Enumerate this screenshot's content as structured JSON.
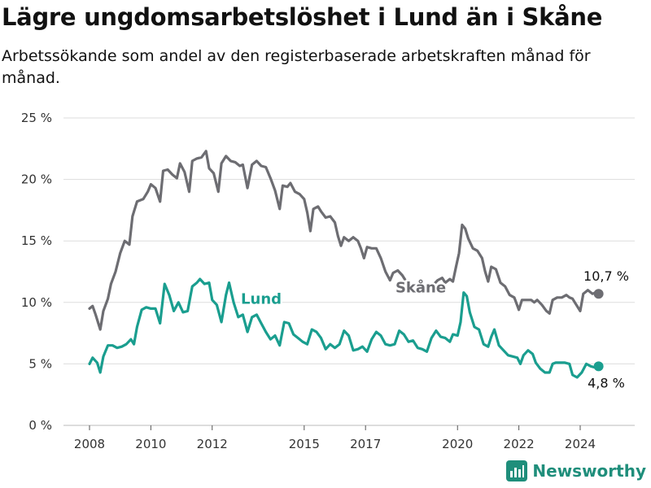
{
  "title": "Lägre ungdomsarbetslöshet i Lund än i Skåne",
  "subtitle": "Arbetssökande som andel av den registerbaserade arbetskraften månad för månad.",
  "brand": "Newsworthy",
  "colors": {
    "skane": "#6d6d72",
    "lund": "#1a9e8f",
    "grid": "#dddddd"
  },
  "chart_data": {
    "type": "line",
    "ylim": [
      0,
      25
    ],
    "xlim": [
      2007.5,
      2025.4
    ],
    "yticks": [
      {
        "value": 0,
        "label": "0 %"
      },
      {
        "value": 5,
        "label": "5 %"
      },
      {
        "value": 10,
        "label": "10 %"
      },
      {
        "value": 15,
        "label": "15 %"
      },
      {
        "value": 20,
        "label": "20 %"
      },
      {
        "value": 25,
        "label": "25 %"
      }
    ],
    "xticks": [
      {
        "value": 2008,
        "label": "2008"
      },
      {
        "value": 2010,
        "label": "2010"
      },
      {
        "value": 2012,
        "label": "2012"
      },
      {
        "value": 2015,
        "label": "2015"
      },
      {
        "value": 2017,
        "label": "2017"
      },
      {
        "value": 2020,
        "label": "2020"
      },
      {
        "value": 2022,
        "label": "2022"
      },
      {
        "value": 2024,
        "label": "2024"
      }
    ],
    "series": [
      {
        "name": "Skåne",
        "color": "#6d6d72",
        "end_label": "10,7 %",
        "points": [
          [
            2008.0,
            9.5
          ],
          [
            2008.1,
            9.7
          ],
          [
            2008.2,
            9.0
          ],
          [
            2008.35,
            7.8
          ],
          [
            2008.45,
            9.3
          ],
          [
            2008.6,
            10.3
          ],
          [
            2008.7,
            11.5
          ],
          [
            2008.85,
            12.5
          ],
          [
            2009.0,
            14.0
          ],
          [
            2009.15,
            15.0
          ],
          [
            2009.3,
            14.7
          ],
          [
            2009.4,
            17.0
          ],
          [
            2009.55,
            18.2
          ],
          [
            2009.75,
            18.4
          ],
          [
            2009.9,
            19.0
          ],
          [
            2010.0,
            19.6
          ],
          [
            2010.15,
            19.3
          ],
          [
            2010.3,
            18.2
          ],
          [
            2010.4,
            20.7
          ],
          [
            2010.55,
            20.8
          ],
          [
            2010.7,
            20.4
          ],
          [
            2010.85,
            20.1
          ],
          [
            2010.95,
            21.3
          ],
          [
            2011.1,
            20.6
          ],
          [
            2011.25,
            19.0
          ],
          [
            2011.35,
            21.5
          ],
          [
            2011.5,
            21.7
          ],
          [
            2011.65,
            21.8
          ],
          [
            2011.8,
            22.3
          ],
          [
            2011.9,
            20.9
          ],
          [
            2012.05,
            20.5
          ],
          [
            2012.2,
            19.0
          ],
          [
            2012.3,
            21.3
          ],
          [
            2012.45,
            21.9
          ],
          [
            2012.6,
            21.5
          ],
          [
            2012.75,
            21.4
          ],
          [
            2012.9,
            21.1
          ],
          [
            2013.0,
            21.2
          ],
          [
            2013.15,
            19.3
          ],
          [
            2013.3,
            21.2
          ],
          [
            2013.45,
            21.5
          ],
          [
            2013.6,
            21.1
          ],
          [
            2013.75,
            21.0
          ],
          [
            2013.9,
            20.1
          ],
          [
            2014.05,
            19.1
          ],
          [
            2014.2,
            17.6
          ],
          [
            2014.3,
            19.5
          ],
          [
            2014.45,
            19.4
          ],
          [
            2014.55,
            19.7
          ],
          [
            2014.7,
            19.0
          ],
          [
            2014.85,
            18.8
          ],
          [
            2015.0,
            18.4
          ],
          [
            2015.1,
            17.3
          ],
          [
            2015.2,
            15.8
          ],
          [
            2015.3,
            17.6
          ],
          [
            2015.45,
            17.8
          ],
          [
            2015.55,
            17.4
          ],
          [
            2015.7,
            16.9
          ],
          [
            2015.85,
            17.0
          ],
          [
            2016.0,
            16.5
          ],
          [
            2016.1,
            15.4
          ],
          [
            2016.2,
            14.6
          ],
          [
            2016.3,
            15.3
          ],
          [
            2016.45,
            15.0
          ],
          [
            2016.6,
            15.3
          ],
          [
            2016.75,
            15.0
          ],
          [
            2016.85,
            14.4
          ],
          [
            2016.95,
            13.6
          ],
          [
            2017.05,
            14.5
          ],
          [
            2017.2,
            14.4
          ],
          [
            2017.35,
            14.4
          ],
          [
            2017.5,
            13.6
          ],
          [
            2017.65,
            12.5
          ],
          [
            2017.8,
            11.8
          ],
          [
            2017.9,
            12.4
          ],
          [
            2018.05,
            12.6
          ],
          [
            2018.2,
            12.2
          ],
          [
            2018.35,
            11.6
          ],
          [
            2018.45,
            11.4
          ],
          null,
          [
            2019.2,
            11.4
          ],
          [
            2019.35,
            11.8
          ],
          [
            2019.5,
            12.0
          ],
          [
            2019.6,
            11.6
          ],
          [
            2019.75,
            11.9
          ],
          [
            2019.85,
            11.7
          ],
          [
            2019.95,
            12.9
          ],
          [
            2020.05,
            14.0
          ],
          [
            2020.15,
            16.3
          ],
          [
            2020.25,
            16.0
          ],
          [
            2020.35,
            15.2
          ],
          [
            2020.5,
            14.4
          ],
          [
            2020.65,
            14.2
          ],
          [
            2020.8,
            13.6
          ],
          [
            2020.9,
            12.5
          ],
          [
            2021.0,
            11.7
          ],
          [
            2021.1,
            12.9
          ],
          [
            2021.25,
            12.7
          ],
          [
            2021.4,
            11.6
          ],
          [
            2021.55,
            11.3
          ],
          [
            2021.7,
            10.6
          ],
          [
            2021.85,
            10.4
          ],
          [
            2022.0,
            9.4
          ],
          [
            2022.1,
            10.2
          ],
          [
            2022.25,
            10.2
          ],
          [
            2022.4,
            10.2
          ],
          [
            2022.5,
            10.0
          ],
          [
            2022.6,
            10.2
          ],
          [
            2022.75,
            9.8
          ],
          [
            2022.9,
            9.3
          ],
          [
            2023.0,
            9.1
          ],
          [
            2023.1,
            10.2
          ],
          [
            2023.25,
            10.4
          ],
          [
            2023.4,
            10.4
          ],
          [
            2023.55,
            10.6
          ],
          [
            2023.65,
            10.4
          ],
          [
            2023.75,
            10.3
          ],
          [
            2023.85,
            9.9
          ],
          [
            2024.0,
            9.3
          ],
          [
            2024.1,
            10.7
          ],
          [
            2024.25,
            11.0
          ],
          [
            2024.4,
            10.7
          ],
          [
            2024.5,
            10.8
          ],
          [
            2024.6,
            10.7
          ]
        ]
      },
      {
        "name": "Lund",
        "color": "#1a9e8f",
        "end_label": "4,8 %",
        "points": [
          [
            2008.0,
            5.0
          ],
          [
            2008.1,
            5.5
          ],
          [
            2008.25,
            5.1
          ],
          [
            2008.35,
            4.3
          ],
          [
            2008.45,
            5.6
          ],
          [
            2008.6,
            6.5
          ],
          [
            2008.75,
            6.5
          ],
          [
            2008.9,
            6.3
          ],
          [
            2009.05,
            6.4
          ],
          [
            2009.2,
            6.6
          ],
          [
            2009.35,
            7.0
          ],
          [
            2009.45,
            6.6
          ],
          [
            2009.55,
            8.0
          ],
          [
            2009.7,
            9.4
          ],
          [
            2009.85,
            9.6
          ],
          [
            2010.0,
            9.5
          ],
          [
            2010.15,
            9.5
          ],
          [
            2010.3,
            8.3
          ],
          [
            2010.45,
            11.5
          ],
          [
            2010.6,
            10.6
          ],
          [
            2010.75,
            9.3
          ],
          [
            2010.9,
            10.0
          ],
          [
            2011.05,
            9.2
          ],
          [
            2011.2,
            9.3
          ],
          [
            2011.35,
            11.3
          ],
          [
            2011.5,
            11.6
          ],
          [
            2011.6,
            11.9
          ],
          [
            2011.75,
            11.5
          ],
          [
            2011.9,
            11.6
          ],
          [
            2012.0,
            10.2
          ],
          [
            2012.15,
            9.8
          ],
          [
            2012.3,
            8.4
          ],
          [
            2012.45,
            10.6
          ],
          [
            2012.55,
            11.6
          ],
          [
            2012.7,
            10.0
          ],
          [
            2012.85,
            8.8
          ],
          [
            2013.0,
            9.0
          ],
          [
            2013.15,
            7.6
          ],
          [
            2013.3,
            8.8
          ],
          [
            2013.45,
            9.0
          ],
          [
            2013.6,
            8.3
          ],
          [
            2013.75,
            7.6
          ],
          [
            2013.9,
            7.0
          ],
          [
            2014.05,
            7.3
          ],
          [
            2014.2,
            6.5
          ],
          [
            2014.35,
            8.4
          ],
          [
            2014.5,
            8.3
          ],
          [
            2014.65,
            7.4
          ],
          [
            2014.8,
            7.1
          ],
          [
            2014.95,
            6.8
          ],
          [
            2015.1,
            6.6
          ],
          [
            2015.25,
            7.8
          ],
          [
            2015.4,
            7.6
          ],
          [
            2015.55,
            7.1
          ],
          [
            2015.7,
            6.2
          ],
          [
            2015.85,
            6.6
          ],
          [
            2016.0,
            6.3
          ],
          [
            2016.15,
            6.6
          ],
          [
            2016.3,
            7.7
          ],
          [
            2016.45,
            7.3
          ],
          [
            2016.6,
            6.1
          ],
          [
            2016.75,
            6.2
          ],
          [
            2016.9,
            6.4
          ],
          [
            2017.05,
            6.0
          ],
          [
            2017.2,
            7.0
          ],
          [
            2017.35,
            7.6
          ],
          [
            2017.5,
            7.3
          ],
          [
            2017.65,
            6.6
          ],
          [
            2017.8,
            6.5
          ],
          [
            2017.95,
            6.6
          ],
          [
            2018.1,
            7.7
          ],
          [
            2018.25,
            7.4
          ],
          [
            2018.4,
            6.8
          ],
          [
            2018.55,
            6.9
          ],
          [
            2018.7,
            6.3
          ],
          [
            2018.85,
            6.2
          ],
          [
            2019.0,
            6.0
          ],
          [
            2019.15,
            7.1
          ],
          [
            2019.3,
            7.7
          ],
          [
            2019.45,
            7.2
          ],
          [
            2019.6,
            7.1
          ],
          [
            2019.75,
            6.8
          ],
          [
            2019.85,
            7.4
          ],
          [
            2020.0,
            7.3
          ],
          [
            2020.1,
            8.4
          ],
          [
            2020.2,
            10.8
          ],
          [
            2020.3,
            10.5
          ],
          [
            2020.4,
            9.2
          ],
          [
            2020.55,
            8.0
          ],
          [
            2020.7,
            7.8
          ],
          [
            2020.85,
            6.6
          ],
          [
            2021.0,
            6.4
          ],
          [
            2021.1,
            7.2
          ],
          [
            2021.2,
            7.8
          ],
          [
            2021.35,
            6.5
          ],
          [
            2021.5,
            6.1
          ],
          [
            2021.65,
            5.7
          ],
          [
            2021.8,
            5.6
          ],
          [
            2021.95,
            5.5
          ],
          [
            2022.05,
            5.0
          ],
          [
            2022.15,
            5.7
          ],
          [
            2022.3,
            6.1
          ],
          [
            2022.45,
            5.8
          ],
          [
            2022.55,
            5.1
          ],
          [
            2022.7,
            4.6
          ],
          [
            2022.85,
            4.3
          ],
          [
            2023.0,
            4.3
          ],
          [
            2023.1,
            5.0
          ],
          [
            2023.2,
            5.1
          ],
          [
            2023.35,
            5.1
          ],
          [
            2023.5,
            5.1
          ],
          [
            2023.65,
            5.0
          ],
          [
            2023.75,
            4.1
          ],
          [
            2023.9,
            3.9
          ],
          [
            2024.05,
            4.3
          ],
          [
            2024.2,
            5.0
          ],
          [
            2024.35,
            4.8
          ],
          [
            2024.5,
            4.7
          ],
          [
            2024.6,
            4.8
          ]
        ]
      }
    ],
    "labels": [
      {
        "text": "Skåne",
        "series": 0,
        "x": 2018.8,
        "y": 10.8
      },
      {
        "text": "Lund",
        "series": 1,
        "x": 2013.6,
        "y": 9.9
      }
    ]
  }
}
